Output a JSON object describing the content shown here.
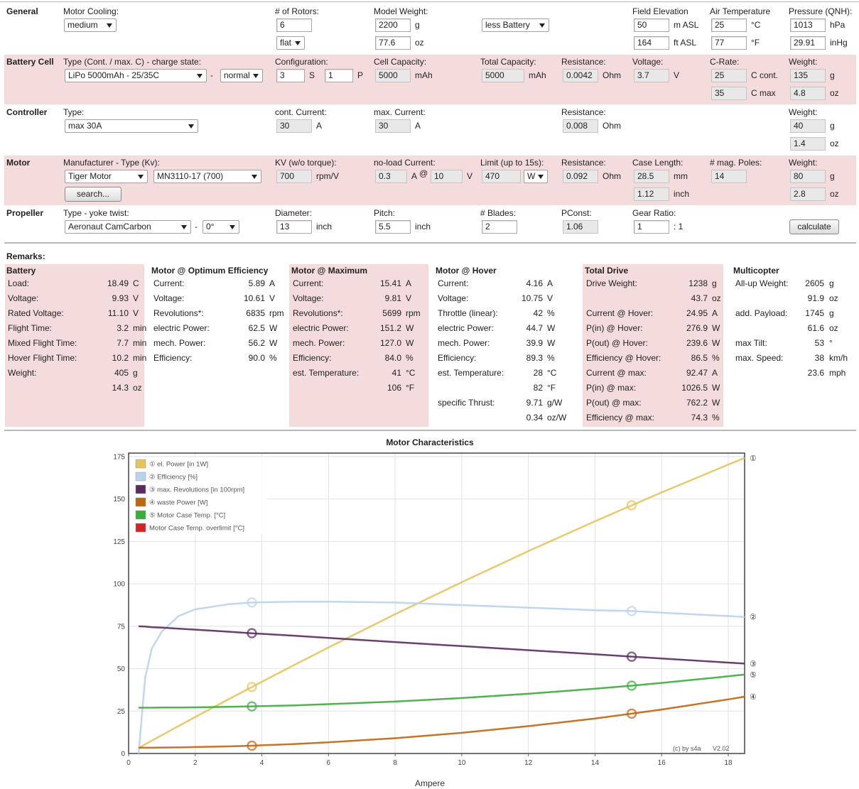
{
  "form": {
    "sections": [
      {
        "name": "General",
        "fields": [
          {
            "label": "Motor Cooling:",
            "items": [
              {
                "kind": "select",
                "value": "medium"
              }
            ]
          },
          {
            "label": "# of Rotors:",
            "items": [
              {
                "kind": "input",
                "value": "6"
              },
              {
                "kind": "select",
                "value": "flat"
              }
            ]
          },
          {
            "label": "Model Weight:",
            "items": [
              {
                "kind": "input",
                "value": "2200",
                "unit": "g"
              },
              {
                "kind": "input",
                "value": "77.6",
                "unit": "oz"
              }
            ]
          },
          {
            "items": [
              {
                "kind": "select",
                "value": "less Battery"
              }
            ]
          },
          {
            "label": "Field Elevation",
            "items": [
              {
                "kind": "input",
                "value": "50",
                "unit": "m ASL"
              },
              {
                "kind": "input",
                "value": "164",
                "unit": "ft ASL"
              }
            ]
          },
          {
            "label": "Air Temperature",
            "items": [
              {
                "kind": "input",
                "value": "25",
                "unit": "°C"
              },
              {
                "kind": "input",
                "value": "77",
                "unit": "°F"
              }
            ]
          },
          {
            "label": "Pressure (QNH):",
            "items": [
              {
                "kind": "input",
                "value": "1013",
                "unit": "hPa"
              },
              {
                "kind": "input",
                "value": "29.91",
                "unit": "inHg"
              }
            ]
          }
        ]
      },
      {
        "name": "Battery Cell",
        "fields": [
          {
            "label": "Type (Cont. / max. C) - charge state:",
            "items": [
              {
                "kind": "select",
                "value": "LiPo 5000mAh - 25/35C"
              },
              {
                "kind": "text",
                "value": "-"
              },
              {
                "kind": "select",
                "value": "normal"
              }
            ]
          },
          {
            "label": "Configuration:",
            "items": [
              {
                "kind": "input",
                "value": "3",
                "unit": "S"
              },
              {
                "kind": "input",
                "value": "1",
                "unit": "P"
              }
            ]
          },
          {
            "label": "Cell Capacity:",
            "items": [
              {
                "kind": "readonly",
                "value": "5000",
                "unit": "mAh"
              }
            ]
          },
          {
            "label": "Total Capacity:",
            "items": [
              {
                "kind": "readonly",
                "value": "5000",
                "unit": "mAh"
              }
            ]
          },
          {
            "label": "Resistance:",
            "items": [
              {
                "kind": "readonly",
                "value": "0.0042",
                "unit": "Ohm"
              }
            ]
          },
          {
            "label": "Voltage:",
            "items": [
              {
                "kind": "readonly",
                "value": "3.7",
                "unit": "V"
              }
            ]
          },
          {
            "label": "C-Rate:",
            "items": [
              {
                "kind": "readonly",
                "value": "25",
                "unit": "C cont."
              },
              {
                "kind": "readonly",
                "value": "35",
                "unit": "C max"
              }
            ]
          },
          {
            "label": "Weight:",
            "items": [
              {
                "kind": "readonly",
                "value": "135",
                "unit": "g"
              },
              {
                "kind": "readonly",
                "value": "4.8",
                "unit": "oz"
              }
            ]
          }
        ]
      },
      {
        "name": "Controller",
        "fields": [
          {
            "label": "Type:",
            "items": [
              {
                "kind": "select",
                "value": "max 30A"
              }
            ]
          },
          {
            "label": "cont. Current:",
            "items": [
              {
                "kind": "readonly",
                "value": "30",
                "unit": "A"
              }
            ]
          },
          {
            "label": "max. Current:",
            "items": [
              {
                "kind": "readonly",
                "value": "30",
                "unit": "A"
              }
            ]
          },
          {
            "label": "Resistance:",
            "items": [
              {
                "kind": "readonly",
                "value": "0.008",
                "unit": "Ohm"
              }
            ]
          },
          {
            "label": "Weight:",
            "items": [
              {
                "kind": "readonly",
                "value": "40",
                "unit": "g"
              },
              {
                "kind": "readonly",
                "value": "1.4",
                "unit": "oz"
              }
            ]
          }
        ]
      },
      {
        "name": "Motor",
        "fields": [
          {
            "label": "Manufacturer - Type (Kv):",
            "items": [
              {
                "kind": "select",
                "value": "Tiger Motor"
              },
              {
                "kind": "select",
                "value": "MN3110-17 (700)"
              },
              {
                "kind": "button",
                "value": "search..."
              }
            ]
          },
          {
            "label": "KV (w/o torque):",
            "items": [
              {
                "kind": "readonly",
                "value": "700",
                "unit": "rpm/V"
              }
            ]
          },
          {
            "label": "no-load Current:",
            "items": [
              {
                "kind": "readonly",
                "value": "0.3",
                "unit": "A"
              },
              {
                "kind": "text",
                "value": "@"
              },
              {
                "kind": "readonly",
                "value": "10",
                "unit": "V"
              }
            ]
          },
          {
            "label": "Limit (up to 15s):",
            "items": [
              {
                "kind": "readonly",
                "value": "470"
              },
              {
                "kind": "select",
                "value": "W"
              }
            ]
          },
          {
            "label": "Resistance:",
            "items": [
              {
                "kind": "readonly",
                "value": "0.092",
                "unit": "Ohm"
              }
            ]
          },
          {
            "label": "Case Length:",
            "items": [
              {
                "kind": "readonly",
                "value": "28.5",
                "unit": "mm"
              },
              {
                "kind": "readonly",
                "value": "1.12",
                "unit": "inch"
              }
            ]
          },
          {
            "label": "# mag. Poles:",
            "items": [
              {
                "kind": "readonly",
                "value": "14"
              }
            ]
          },
          {
            "label": "Weight:",
            "items": [
              {
                "kind": "readonly",
                "value": "80",
                "unit": "g"
              },
              {
                "kind": "readonly",
                "value": "2.8",
                "unit": "oz"
              }
            ]
          }
        ]
      },
      {
        "name": "Propeller",
        "fields": [
          {
            "label": "Type - yoke twist:",
            "items": [
              {
                "kind": "select",
                "value": "Aeronaut CamCarbon"
              },
              {
                "kind": "text",
                "value": "-"
              },
              {
                "kind": "select",
                "value": "0°"
              }
            ]
          },
          {
            "label": "Diameter:",
            "items": [
              {
                "kind": "input",
                "value": "13",
                "unit": "inch"
              }
            ]
          },
          {
            "label": "Pitch:",
            "items": [
              {
                "kind": "input",
                "value": "5.5",
                "unit": "inch"
              }
            ]
          },
          {
            "label": "# Blades:",
            "items": [
              {
                "kind": "input",
                "value": "2"
              }
            ]
          },
          {
            "label": "PConst:",
            "items": [
              {
                "kind": "readonly",
                "value": "1.06"
              }
            ]
          },
          {
            "label": "Gear Ratio:",
            "items": [
              {
                "kind": "input",
                "value": "1",
                "unit": ": 1"
              }
            ]
          },
          {
            "items": [
              {
                "kind": "button",
                "value": "calculate"
              }
            ]
          }
        ]
      }
    ]
  },
  "remarks": {
    "title": "Remarks:",
    "columns": [
      {
        "title": "Battery",
        "rows": [
          {
            "label": "Load:",
            "value": "18.49",
            "unit": "C"
          },
          {
            "label": "Voltage:",
            "value": "9.93",
            "unit": "V"
          },
          {
            "label": "Rated Voltage:",
            "value": "11.10",
            "unit": "V"
          },
          {
            "label": "Flight Time:",
            "value": "3.2",
            "unit": "min"
          },
          {
            "label": "Mixed Flight Time:",
            "value": "7.7",
            "unit": "min"
          },
          {
            "label": "Hover Flight Time:",
            "value": "10.2",
            "unit": "min"
          },
          {
            "label": "Weight:",
            "value": "405",
            "unit": "g"
          },
          {
            "value": "14.3",
            "unit": "oz"
          }
        ]
      },
      {
        "title": "Motor @ Optimum Efficiency",
        "rows": [
          {
            "label": "Current:",
            "value": "5.89",
            "unit": "A"
          },
          {
            "label": "Voltage:",
            "value": "10.61",
            "unit": "V"
          },
          {
            "label": "Revolutions*:",
            "value": "6835",
            "unit": "rpm"
          },
          {
            "label": "electric Power:",
            "value": "62.5",
            "unit": "W"
          },
          {
            "label": "mech. Power:",
            "value": "56.2",
            "unit": "W"
          },
          {
            "label": "Efficiency:",
            "value": "90.0",
            "unit": "%"
          }
        ]
      },
      {
        "title": "Motor @ Maximum",
        "rows": [
          {
            "label": "Current:",
            "value": "15.41",
            "unit": "A"
          },
          {
            "label": "Voltage:",
            "value": "9.81",
            "unit": "V"
          },
          {
            "label": "Revolutions*:",
            "value": "5699",
            "unit": "rpm"
          },
          {
            "label": "electric Power:",
            "value": "151.2",
            "unit": "W"
          },
          {
            "label": "mech. Power:",
            "value": "127.0",
            "unit": "W"
          },
          {
            "label": "Efficiency:",
            "value": "84.0",
            "unit": "%"
          },
          {
            "label": "est. Temperature:",
            "value": "41",
            "unit": "°C"
          },
          {
            "value": "106",
            "unit": "°F"
          }
        ]
      },
      {
        "title": "Motor @ Hover",
        "rows": [
          {
            "label": "Current:",
            "value": "4.16",
            "unit": "A"
          },
          {
            "label": "Voltage:",
            "value": "10.75",
            "unit": "V"
          },
          {
            "label": "Throttle (linear):",
            "value": "42",
            "unit": "%"
          },
          {
            "label": "electric Power:",
            "value": "44.7",
            "unit": "W"
          },
          {
            "label": "mech. Power:",
            "value": "39.9",
            "unit": "W"
          },
          {
            "label": "Efficiency:",
            "value": "89.3",
            "unit": "%"
          },
          {
            "label": "est. Temperature:",
            "value": "28",
            "unit": "°C"
          },
          {
            "value": "82",
            "unit": "°F"
          },
          {
            "label": "specific Thrust:",
            "value": "9.71",
            "unit": "g/W"
          },
          {
            "value": "0.34",
            "unit": "oz/W"
          }
        ]
      },
      {
        "title": "Total Drive",
        "rows": [
          {
            "label": "Drive Weight:",
            "value": "1238",
            "unit": "g"
          },
          {
            "value": "43.7",
            "unit": "oz"
          },
          {
            "label": "Current @ Hover:",
            "value": "24.95",
            "unit": "A"
          },
          {
            "label": "P(in) @ Hover:",
            "value": "276.9",
            "unit": "W"
          },
          {
            "label": "P(out) @ Hover:",
            "value": "239.6",
            "unit": "W"
          },
          {
            "label": "Efficiency @ Hover:",
            "value": "86.5",
            "unit": "%"
          },
          {
            "label": "Current @ max:",
            "value": "92.47",
            "unit": "A"
          },
          {
            "label": "P(in) @ max:",
            "value": "1026.5",
            "unit": "W"
          },
          {
            "label": "P(out) @ max:",
            "value": "762.2",
            "unit": "W"
          },
          {
            "label": "Efficiency @ max:",
            "value": "74.3",
            "unit": "%"
          }
        ]
      },
      {
        "title": "Multicopter",
        "rows": [
          {
            "label": "All-up Weight:",
            "value": "2605",
            "unit": "g"
          },
          {
            "value": "91.9",
            "unit": "oz"
          },
          {
            "label": "add. Payload:",
            "value": "1745",
            "unit": "g"
          },
          {
            "value": "61.6",
            "unit": "oz"
          },
          {
            "label": "max Tilt:",
            "value": "53",
            "unit": "°"
          },
          {
            "label": "max. Speed:",
            "value": "38",
            "unit": "km/h"
          },
          {
            "value": "23.6",
            "unit": "mph"
          }
        ]
      }
    ]
  },
  "chart_data": {
    "type": "line",
    "title": "Motor Characteristics",
    "x_label": "Ampere",
    "x": [
      0.3,
      0.5,
      0.7,
      1,
      1.5,
      2,
      3,
      3.7,
      5,
      6,
      8,
      10,
      12,
      14,
      15.1,
      16,
      18,
      18.49
    ],
    "xlim": [
      0,
      18.49
    ],
    "xticks": [
      0,
      2,
      4,
      6,
      8,
      10,
      12,
      14,
      16,
      18
    ],
    "ylim": [
      0,
      175
    ],
    "yticks": [
      0,
      25,
      50,
      75,
      100,
      125,
      150,
      175
    ],
    "grid": true,
    "legend": "top-left",
    "markers_at": [
      3.7,
      15.1
    ],
    "series": [
      {
        "name": "① el. Power [in 1W]",
        "end_label": "①",
        "color": "#e6c35c",
        "values": [
          3.3,
          5.4,
          7.6,
          10.8,
          16.2,
          21.5,
          32.0,
          39.2,
          52.5,
          62.5,
          82.1,
          101.0,
          119.3,
          136.9,
          146.3,
          153.9,
          170.3,
          174.2
        ]
      },
      {
        "name": "② Efficiency [%]",
        "end_label": "②",
        "color": "#b9d3ec",
        "values": [
          0,
          45,
          62,
          72,
          81,
          85,
          88,
          89,
          89.5,
          89.5,
          89,
          87.5,
          86,
          84.5,
          84,
          83,
          81,
          80.5
        ]
      },
      {
        "name": "③ max. Revolutions [in 100rpm]",
        "end_label": "③",
        "color": "#5b2a60",
        "values": [
          75.0,
          74.8,
          74.5,
          74.2,
          73.6,
          73.0,
          71.8,
          70.9,
          69.4,
          68.1,
          65.7,
          63.3,
          60.9,
          58.5,
          57.1,
          56.0,
          53.6,
          53.0
        ]
      },
      {
        "name": "④ waste Power [W]",
        "end_label": "④",
        "color": "#c0650f",
        "values": [
          3.4,
          3.4,
          3.4,
          3.5,
          3.6,
          3.8,
          4.2,
          4.6,
          5.6,
          6.6,
          9.0,
          12.2,
          16.1,
          20.6,
          23.5,
          25.9,
          31.9,
          33.5
        ]
      },
      {
        "name": "⑤ Motor Case Temp. [°C]",
        "end_label": "⑤",
        "color": "#3cac3c",
        "values": [
          27.0,
          27.0,
          27.0,
          27.1,
          27.1,
          27.2,
          27.5,
          27.8,
          28.4,
          29.1,
          30.6,
          32.7,
          35.2,
          38.2,
          40.0,
          41.6,
          45.5,
          46.5
        ]
      },
      {
        "name": "Motor Case Temp. overlimit [°C]",
        "color": "#d42424",
        "values": [
          null,
          null,
          null,
          null,
          null,
          null,
          null,
          null,
          null,
          null,
          null,
          null,
          null,
          null,
          null,
          null,
          null,
          null
        ]
      }
    ],
    "credit": "(c) by s4a",
    "version": "V2.02"
  }
}
